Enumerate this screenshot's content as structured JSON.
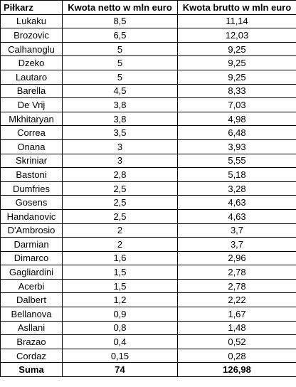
{
  "table": {
    "headers": [
      "Piłkarz",
      "Kwota netto w mln euro",
      "Kwota brutto w mln euro"
    ],
    "rows": [
      [
        "Lukaku",
        "8,5",
        "11,14"
      ],
      [
        "Brozovic",
        "6,5",
        "12,03"
      ],
      [
        "Calhanoglu",
        "5",
        "9,25"
      ],
      [
        "Dzeko",
        "5",
        "9,25"
      ],
      [
        "Lautaro",
        "5",
        "9,25"
      ],
      [
        "Barella",
        "4,5",
        "8,33"
      ],
      [
        "De Vrij",
        "3,8",
        "7,03"
      ],
      [
        "Mkhitaryan",
        "3,8",
        "4,98"
      ],
      [
        "Correa",
        "3,5",
        "6,48"
      ],
      [
        "Onana",
        "3",
        "3,93"
      ],
      [
        "Skriniar",
        "3",
        "5,55"
      ],
      [
        "Bastoni",
        "2,8",
        "5,18"
      ],
      [
        "Dumfries",
        "2,5",
        "3,28"
      ],
      [
        "Gosens",
        "2,5",
        "4,63"
      ],
      [
        "Handanovic",
        "2,5",
        "4,63"
      ],
      [
        "D'Ambrosio",
        "2",
        "3,7"
      ],
      [
        "Darmian",
        "2",
        "3,7"
      ],
      [
        "Dimarco",
        "1,6",
        "2,96"
      ],
      [
        "Gagliardini",
        "1,5",
        "2,78"
      ],
      [
        "Acerbi",
        "1,5",
        "2,78"
      ],
      [
        "Dalbert",
        "1,2",
        "2,22"
      ],
      [
        "Bellanova",
        "0,9",
        "1,67"
      ],
      [
        "Asllani",
        "0,8",
        "1,48"
      ],
      [
        "Brazao",
        "0,4",
        "0,52"
      ],
      [
        "Cordaz",
        "0,15",
        "0,28"
      ]
    ],
    "total": [
      "Suma",
      "74",
      "126,98"
    ]
  }
}
